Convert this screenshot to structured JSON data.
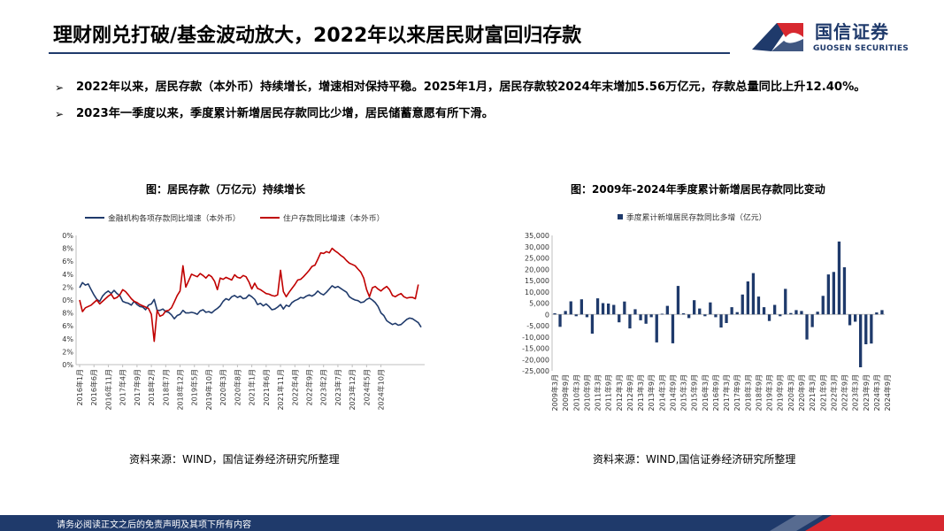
{
  "header": {
    "title": "理财刚兑打破/基金波动放大，2022年以来居民财富回归存款",
    "logo_cn": "国信证券",
    "logo_en": "GUOSEN SECURITIES"
  },
  "bullets": [
    {
      "mark": "➢",
      "text": "2022年以来，居民存款（本外币）持续增长，增速相对保持平稳。2025年1月，居民存款较2024年末增加5.56万亿元，存款总量同比上升12.40%。"
    },
    {
      "mark": "➢",
      "text": "2023年一季度以来，季度累计新增居民存款同比少增，居民储蓄意愿有所下滑。"
    }
  ],
  "footer": {
    "disclaimer": "请务必阅读正文之后的免责声明及其项下所有内容"
  },
  "colors": {
    "navy": "#1f3a6b",
    "red": "#c00000",
    "brand_red": "#d7282f"
  },
  "chart_data": [
    {
      "type": "line",
      "title": "图：居民存款（万亿元）持续增长",
      "source": "资料来源：WIND，国信证券经济研究所整理",
      "legend_position": "top",
      "ylim": [
        0,
        20
      ],
      "y_ticks": [
        "0%",
        "2%",
        "4%",
        "6%",
        "8%",
        "10%",
        "12%",
        "14%",
        "16%",
        "18%",
        "20%"
      ],
      "x_ticks": [
        "2016年1月",
        "2016年6月",
        "2016年11月",
        "2017年4月",
        "2017年9月",
        "2018年2月",
        "2018年7月",
        "2018年12月",
        "2019年5月",
        "2019年10月",
        "2020年3月",
        "2020年8月",
        "2021年1月",
        "2021年6月",
        "2021年11月",
        "2022年4月",
        "2022年9月",
        "2023年2月",
        "2023年7月",
        "2023年12月",
        "2024年5月",
        "2024年10月"
      ],
      "series": [
        {
          "name": "金融机构各项存款同比增速（本外币）",
          "color": "#1f3a6b",
          "values": [
            11.9,
            12.7,
            12.3,
            12.5,
            11.6,
            10.8,
            10.1,
            9.8,
            10.6,
            11.1,
            11.4,
            11.0,
            11.5,
            11.0,
            10.7,
            9.8,
            9.6,
            9.5,
            9.2,
            9.8,
            9.3,
            9.0,
            8.9,
            8.5,
            9.2,
            9.4,
            10.1,
            8.4,
            8.4,
            8.6,
            8.2,
            8.1,
            7.7,
            7.1,
            7.6,
            7.8,
            8.4,
            8.0,
            8.0,
            8.1,
            8.0,
            7.8,
            8.3,
            8.5,
            8.1,
            8.2,
            8.0,
            8.4,
            8.7,
            9.1,
            9.8,
            10.2,
            10.0,
            10.5,
            10.7,
            10.4,
            10.6,
            10.2,
            10.3,
            10.8,
            10.5,
            10.1,
            9.3,
            9.5,
            9.1,
            9.4,
            9.0,
            8.5,
            8.6,
            8.9,
            9.3,
            8.6,
            9.2,
            9.0,
            9.6,
            9.9,
            10.1,
            10.4,
            10.3,
            10.6,
            10.8,
            10.6,
            10.9,
            11.4,
            11.0,
            10.8,
            11.2,
            11.7,
            12.2,
            11.9,
            12.1,
            11.8,
            11.5,
            11.2,
            10.5,
            10.2,
            10.0,
            9.9,
            9.6,
            9.7,
            10.1,
            10.3,
            10.0,
            9.6,
            9.0,
            8.0,
            7.6,
            6.8,
            6.5,
            6.2,
            6.4,
            6.1,
            6.2,
            6.6,
            7.0,
            7.2,
            7.1,
            6.8,
            6.5,
            5.8
          ]
        },
        {
          "name": "住户存款同比增速（本外币）",
          "color": "#c00000",
          "values": [
            10.0,
            8.2,
            8.8,
            9.0,
            9.2,
            9.6,
            10.0,
            9.4,
            9.8,
            10.2,
            10.6,
            10.9,
            10.2,
            10.4,
            10.8,
            11.6,
            11.3,
            10.8,
            10.2,
            9.8,
            9.6,
            9.3,
            9.1,
            8.9,
            8.7,
            7.8,
            3.6,
            8.4,
            7.5,
            7.7,
            8.3,
            8.4,
            8.8,
            9.7,
            10.7,
            11.4,
            15.3,
            12.0,
            13.0,
            14.0,
            13.8,
            13.6,
            14.1,
            13.8,
            13.4,
            13.9,
            13.6,
            12.9,
            11.6,
            13.4,
            13.2,
            13.5,
            13.3,
            13.1,
            13.9,
            13.5,
            13.4,
            13.8,
            13.6,
            12.8,
            11.7,
            12.6,
            11.8,
            11.6,
            11.3,
            11.0,
            10.9,
            10.7,
            10.6,
            10.8,
            14.6,
            11.3,
            10.5,
            11.2,
            11.8,
            12.4,
            13.1,
            13.2,
            13.6,
            14.1,
            14.6,
            15.2,
            15.4,
            16.3,
            17.3,
            17.2,
            17.5,
            17.3,
            18.0,
            17.6,
            17.3,
            16.9,
            16.6,
            16.1,
            15.7,
            15.5,
            15.3,
            14.8,
            14.3,
            13.4,
            11.6,
            10.5,
            11.9,
            12.1,
            11.7,
            11.4,
            11.8,
            12.1,
            11.6,
            10.7,
            10.5,
            10.8,
            11.0,
            10.5,
            10.3,
            10.4,
            10.4,
            10.2,
            12.4
          ]
        }
      ]
    },
    {
      "type": "bar",
      "title": "图：2009年-2024年季度累计新增居民存款同比变动",
      "source": "资料来源：WIND,国信证券经济研究所整理",
      "legend_position": "top",
      "ylim": [
        -25000,
        35000
      ],
      "y_ticks": [
        "-25,000",
        "-20,000",
        "-15,000",
        "-10,000",
        "-5,000",
        "0",
        "5,000",
        "10,000",
        "15,000",
        "20,000",
        "25,000",
        "30,000",
        "35,000"
      ],
      "x_ticks": [
        "2009年3月",
        "2009年9月",
        "2010年3月",
        "2010年9月",
        "2011年3月",
        "2011年9月",
        "2012年3月",
        "2012年9月",
        "2013年3月",
        "2013年9月",
        "2014年3月",
        "2014年9月",
        "2015年3月",
        "2015年9月",
        "2016年3月",
        "2016年9月",
        "2017年3月",
        "2017年9月",
        "2018年3月",
        "2018年9月",
        "2019年3月",
        "2019年9月",
        "2020年3月",
        "2020年9月",
        "2021年3月",
        "2021年9月",
        "2022年3月",
        "2022年9月",
        "2023年3月",
        "2023年9月",
        "2024年3月",
        "2024年9月"
      ],
      "series": [
        {
          "name": "季度累计新增居民存款同比多增（亿元）",
          "color": "#1f3a6b",
          "values": [
            500,
            -5500,
            1500,
            5800,
            -800,
            6700,
            -1200,
            -8500,
            7100,
            5000,
            4800,
            4200,
            -3500,
            5700,
            -6200,
            2300,
            -2600,
            -4100,
            -1200,
            -12400,
            300,
            3800,
            -12800,
            12600,
            500,
            -1600,
            6300,
            2600,
            -800,
            5300,
            -1200,
            -5800,
            -3800,
            3200,
            1000,
            8800,
            14600,
            18300,
            7900,
            3200,
            -2900,
            4200,
            -800,
            11300,
            600,
            1900,
            1500,
            -11100,
            -5600,
            1200,
            8200,
            17700,
            18800,
            32300,
            20900,
            -4800,
            -3200,
            -23400,
            -13200,
            -12900,
            900,
            1900
          ]
        }
      ]
    }
  ]
}
